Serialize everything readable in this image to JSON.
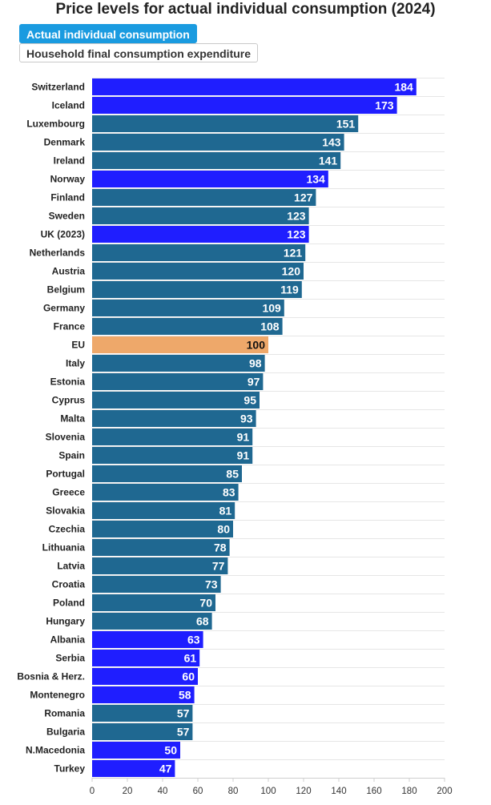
{
  "title": "Price levels for actual individual consumption (2024)",
  "toggles": {
    "active_label": "Actual individual consumption",
    "inactive_label": "Household final consumption expenditure"
  },
  "colors": {
    "default": "#1f6891",
    "highlight": "#1f1eff",
    "eu": "#eea86a",
    "active_toggle": "#1a9be0"
  },
  "chart_data": {
    "type": "bar",
    "orientation": "horizontal",
    "title": "Price levels for actual individual consumption (2024)",
    "xlim": [
      0,
      200
    ],
    "x_ticks": [
      0,
      20,
      40,
      60,
      80,
      100,
      120,
      140,
      160,
      180,
      200
    ],
    "grid": true,
    "categories": [
      "Switzerland",
      "Iceland",
      "Luxembourg",
      "Denmark",
      "Ireland",
      "Norway",
      "Finland",
      "Sweden",
      "UK (2023)",
      "Netherlands",
      "Austria",
      "Belgium",
      "Germany",
      "France",
      "EU",
      "Italy",
      "Estonia",
      "Cyprus",
      "Malta",
      "Slovenia",
      "Spain",
      "Portugal",
      "Greece",
      "Slovakia",
      "Czechia",
      "Lithuania",
      "Latvia",
      "Croatia",
      "Poland",
      "Hungary",
      "Albania",
      "Serbia",
      "Bosnia & Herz.",
      "Montenegro",
      "Romania",
      "Bulgaria",
      "N.Macedonia",
      "Turkey"
    ],
    "values": [
      184,
      173,
      151,
      143,
      141,
      134,
      127,
      123,
      123,
      121,
      120,
      119,
      109,
      108,
      100,
      98,
      97,
      95,
      93,
      91,
      91,
      85,
      83,
      81,
      80,
      78,
      77,
      73,
      70,
      68,
      63,
      61,
      60,
      58,
      57,
      57,
      50,
      47
    ],
    "bar_groups": [
      "highlight",
      "highlight",
      "default",
      "default",
      "default",
      "highlight",
      "default",
      "default",
      "highlight",
      "default",
      "default",
      "default",
      "default",
      "default",
      "eu",
      "default",
      "default",
      "default",
      "default",
      "default",
      "default",
      "default",
      "default",
      "default",
      "default",
      "default",
      "default",
      "default",
      "default",
      "default",
      "highlight",
      "highlight",
      "highlight",
      "highlight",
      "default",
      "default",
      "highlight",
      "highlight"
    ]
  }
}
